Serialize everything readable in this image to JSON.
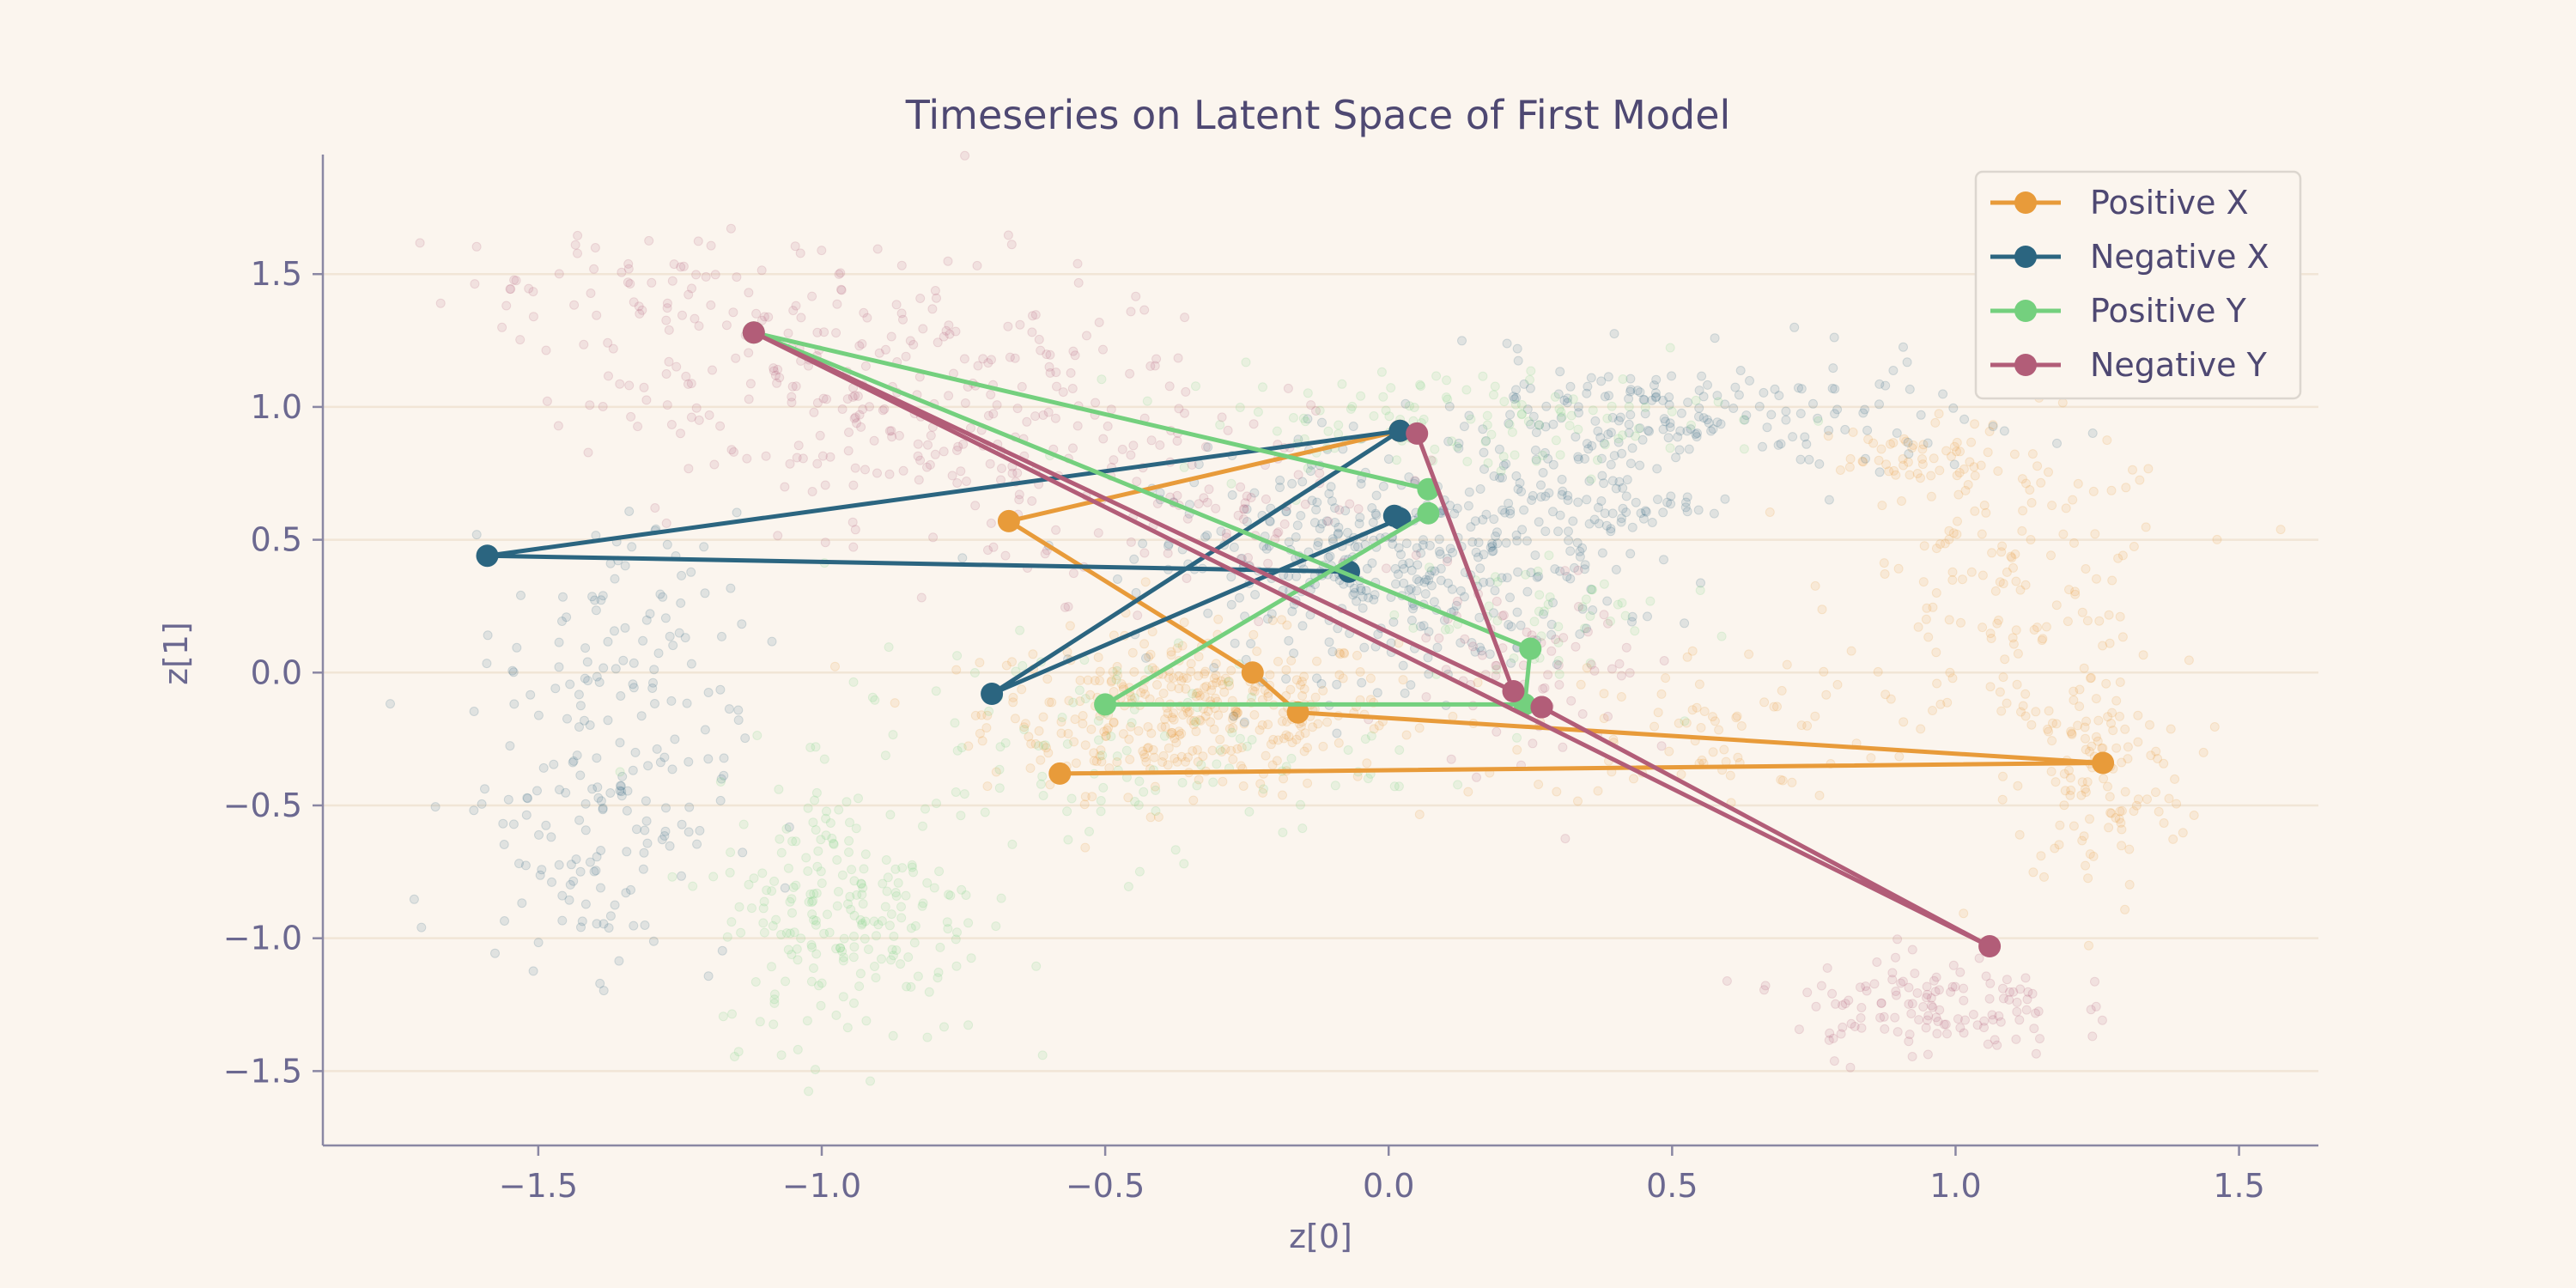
{
  "chart_data": {
    "type": "scatter",
    "title": "Timeseries on Latent Space of First Model",
    "xlabel": "z[0]",
    "ylabel": "z[1]",
    "xlim": [
      -1.88,
      1.64
    ],
    "ylim": [
      -1.78,
      1.95
    ],
    "xticks": [
      -1.5,
      -1.0,
      -0.5,
      0.0,
      0.5,
      1.0,
      1.5
    ],
    "yticks": [
      -1.5,
      -1.0,
      -0.5,
      0.0,
      0.5,
      1.0,
      1.5
    ],
    "xtick_labels": [
      "−1.5",
      "−1.0",
      "−0.5",
      "0.0",
      "0.5",
      "1.0",
      "1.5"
    ],
    "ytick_labels": [
      "−1.5",
      "−1.0",
      "−0.5",
      "0.0",
      "0.5",
      "1.0",
      "1.5"
    ],
    "grid": "horizontal",
    "legend_position": "top-right",
    "background_clouds": [
      {
        "color": "#e89b3a",
        "clusters": [
          {
            "cx": -0.35,
            "cy": -0.15,
            "sx": 0.18,
            "sy": 0.15,
            "n": 380
          },
          {
            "cx": 1.1,
            "cy": 0.3,
            "sx": 0.15,
            "sy": 0.3,
            "n": 160
          },
          {
            "cx": 1.25,
            "cy": -0.4,
            "sx": 0.08,
            "sy": 0.22,
            "n": 120
          },
          {
            "cx": 0.55,
            "cy": -0.2,
            "sx": 0.15,
            "sy": 0.15,
            "n": 70
          },
          {
            "cx": 0.9,
            "cy": 0.8,
            "sx": 0.1,
            "sy": 0.06,
            "n": 50
          }
        ]
      },
      {
        "color": "#2b6580",
        "clusters": [
          {
            "cx": 0.0,
            "cy": 0.4,
            "sx": 0.2,
            "sy": 0.2,
            "n": 400
          },
          {
            "cx": 0.5,
            "cy": 0.95,
            "sx": 0.25,
            "sy": 0.12,
            "n": 200
          },
          {
            "cx": -1.4,
            "cy": -0.5,
            "sx": 0.12,
            "sy": 0.3,
            "n": 160
          },
          {
            "cx": -1.35,
            "cy": 0.2,
            "sx": 0.1,
            "sy": 0.2,
            "n": 60
          },
          {
            "cx": 0.35,
            "cy": 0.65,
            "sx": 0.1,
            "sy": 0.12,
            "n": 80
          }
        ]
      },
      {
        "color": "#74d07e",
        "clusters": [
          {
            "cx": -0.95,
            "cy": -0.9,
            "sx": 0.12,
            "sy": 0.25,
            "n": 220
          },
          {
            "cx": 0.1,
            "cy": 0.95,
            "sx": 0.25,
            "sy": 0.1,
            "n": 120
          },
          {
            "cx": -0.5,
            "cy": -0.3,
            "sx": 0.25,
            "sy": 0.2,
            "n": 120
          },
          {
            "cx": 0.25,
            "cy": 0.2,
            "sx": 0.12,
            "sy": 0.15,
            "n": 50
          }
        ]
      },
      {
        "color": "#b25d78",
        "clusters": [
          {
            "cx": -0.85,
            "cy": 1.05,
            "sx": 0.28,
            "sy": 0.25,
            "n": 300
          },
          {
            "cx": -1.35,
            "cy": 1.45,
            "sx": 0.18,
            "sy": 0.12,
            "n": 60
          },
          {
            "cx": 0.95,
            "cy": -1.25,
            "sx": 0.12,
            "sy": 0.1,
            "n": 130
          },
          {
            "cx": 0.25,
            "cy": 0.0,
            "sx": 0.1,
            "sy": 0.2,
            "n": 70
          },
          {
            "cx": -0.3,
            "cy": 0.6,
            "sx": 0.2,
            "sy": 0.15,
            "n": 80
          }
        ]
      }
    ],
    "series": [
      {
        "name": "Positive X",
        "color": "#e89b3a",
        "x": [
          -0.58,
          1.26,
          -0.16,
          -0.24,
          -0.67,
          0.02
        ],
        "y": [
          -0.38,
          -0.34,
          -0.15,
          0.0,
          0.57,
          0.91
        ]
      },
      {
        "name": "Negative X",
        "color": "#2b6580",
        "x": [
          -0.07,
          -1.59,
          0.02,
          -0.7,
          0.02,
          0.01
        ],
        "y": [
          0.38,
          0.44,
          0.91,
          -0.08,
          0.58,
          0.59
        ]
      },
      {
        "name": "Positive Y",
        "color": "#74d07e",
        "x": [
          0.07,
          -0.5,
          0.24,
          0.25,
          -1.12,
          0.07
        ],
        "y": [
          0.6,
          -0.12,
          -0.12,
          0.09,
          1.28,
          0.69
        ]
      },
      {
        "name": "Negative Y",
        "color": "#b25d78",
        "x": [
          0.05,
          0.22,
          -1.12,
          1.06,
          0.27,
          0.27
        ],
        "y": [
          0.9,
          -0.07,
          1.28,
          -1.03,
          -0.13,
          -0.13
        ]
      }
    ]
  }
}
